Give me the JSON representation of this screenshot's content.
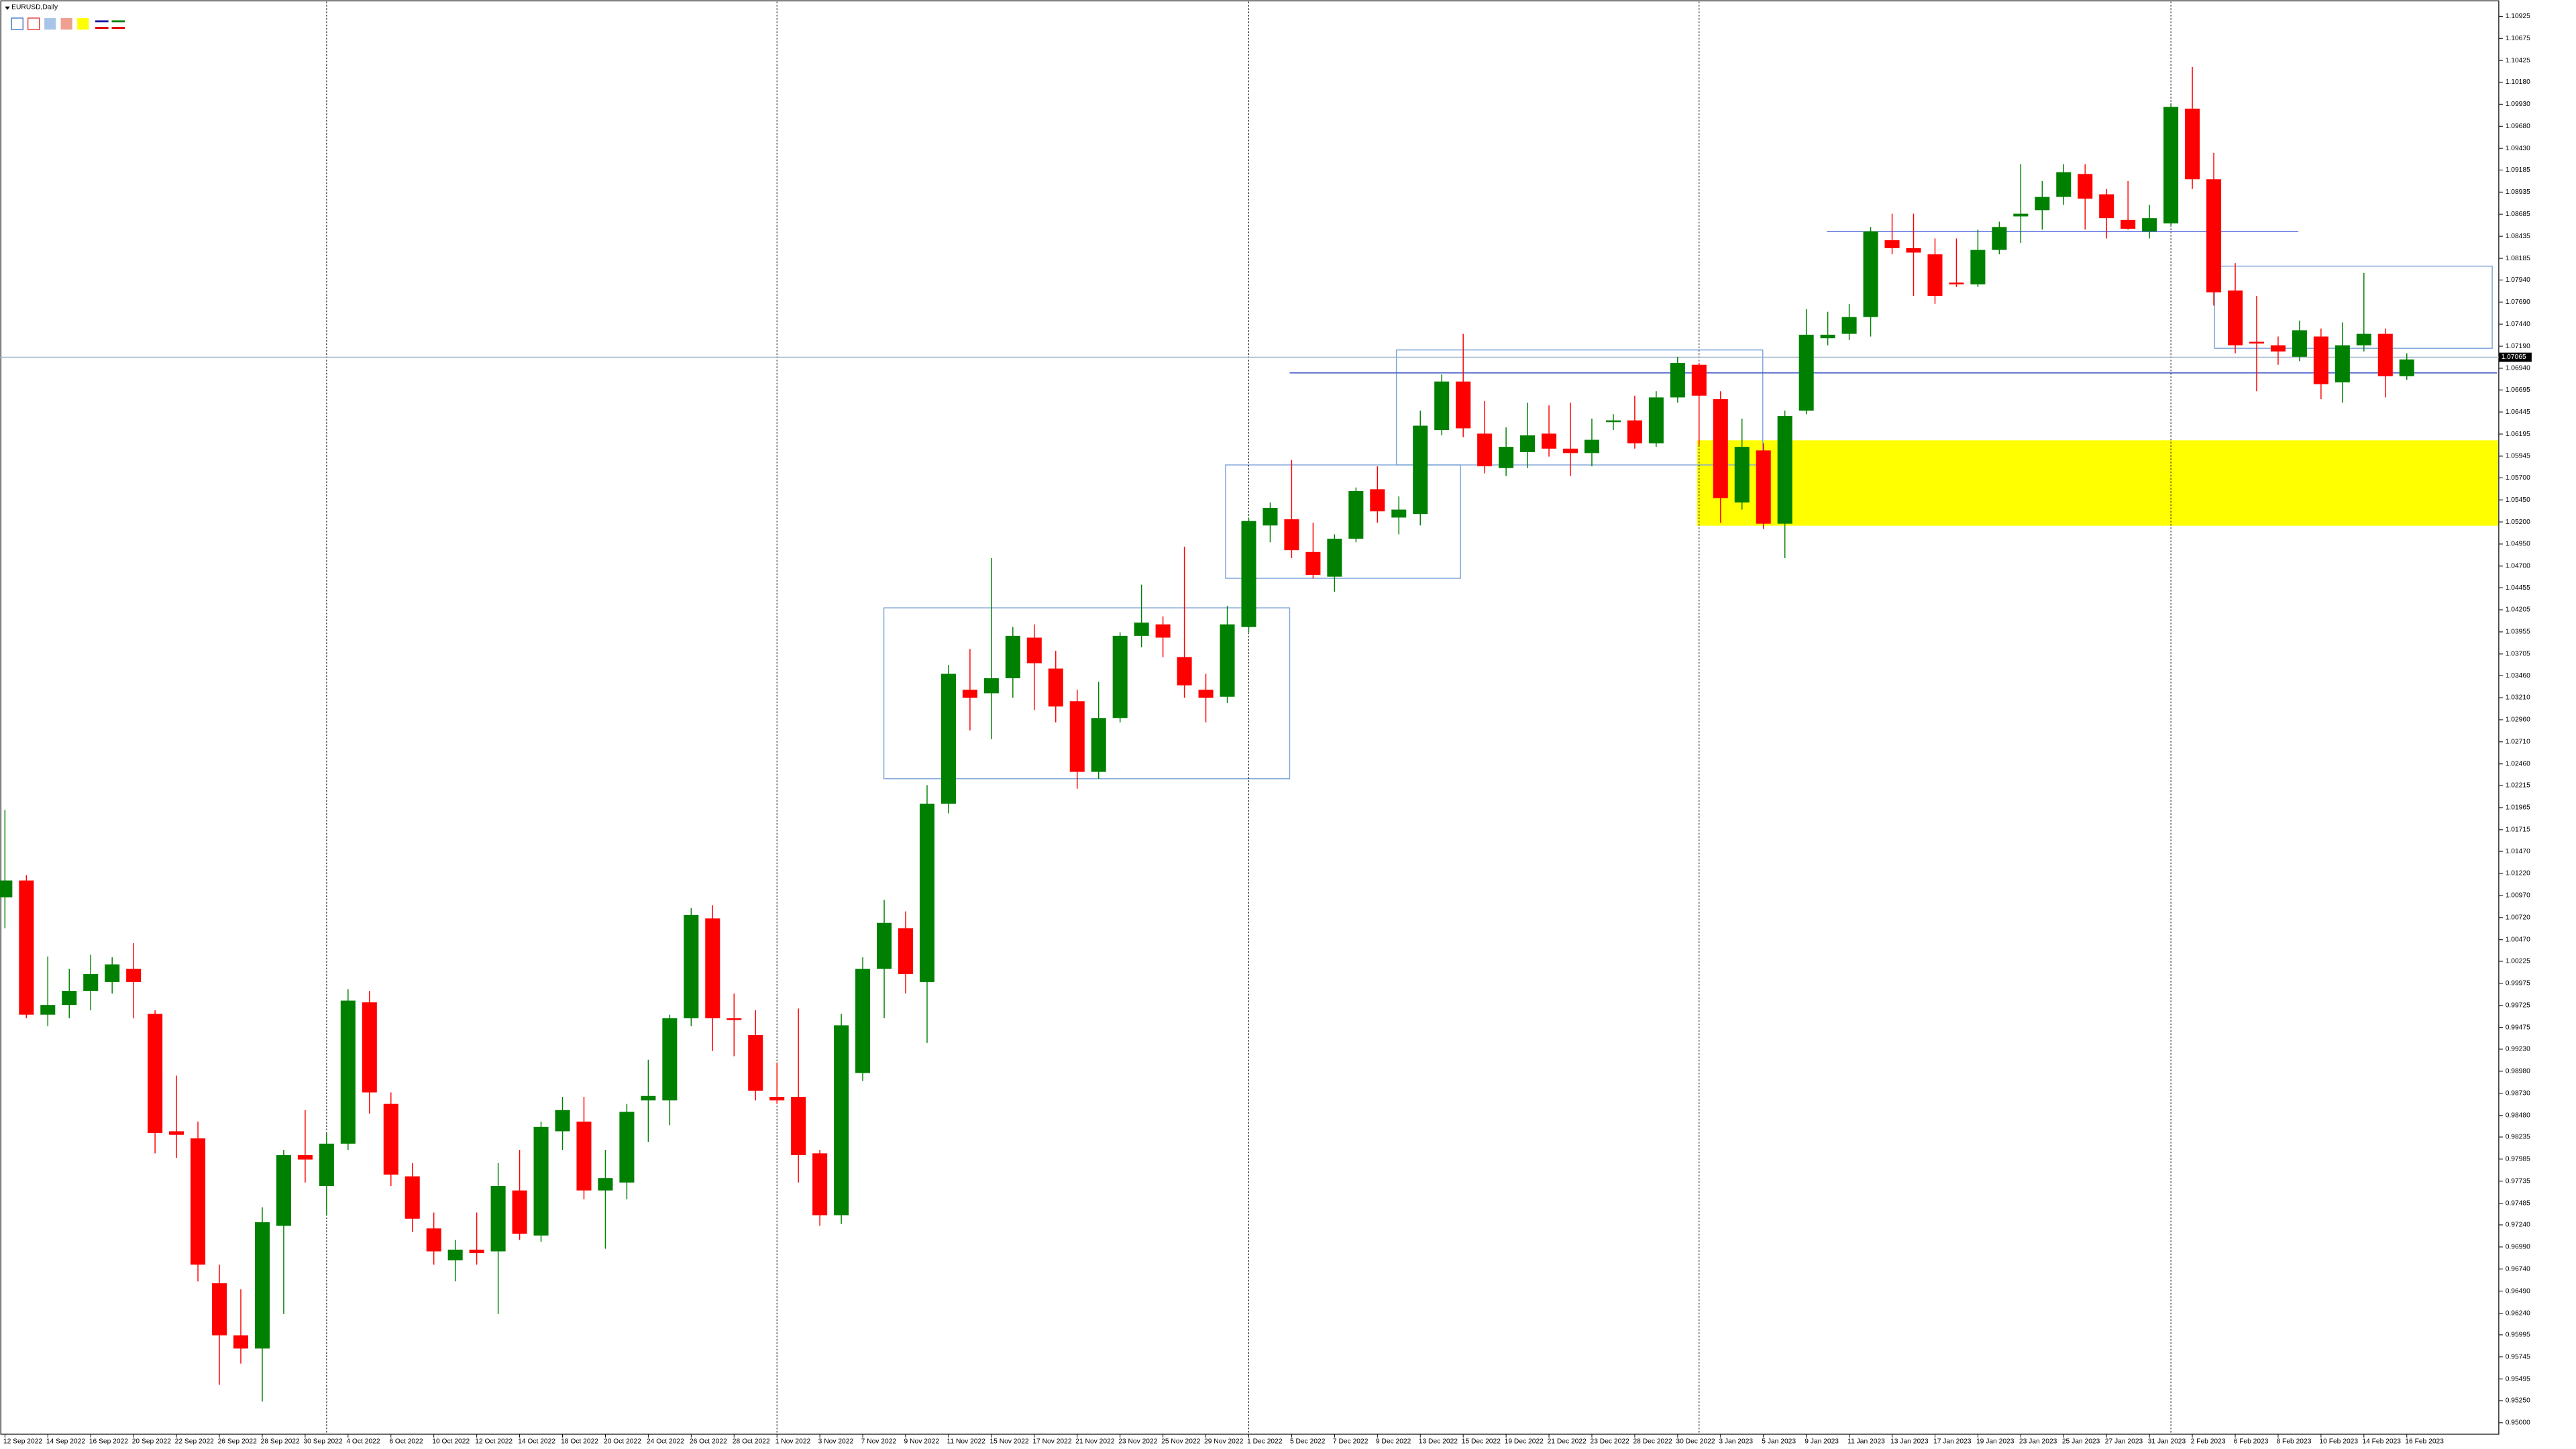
{
  "chart_data": {
    "type": "candlestick",
    "title": "EURUSD,Daily",
    "categories": [
      "12 Sep 2022",
      null,
      "14 Sep 2022",
      null,
      "16 Sep 2022",
      null,
      "20 Sep 2022",
      null,
      "22 Sep 2022",
      null,
      "26 Sep 2022",
      null,
      "28 Sep 2022",
      null,
      "30 Sep 2022",
      null,
      "4 Oct 2022",
      null,
      "6 Oct 2022",
      null,
      "10 Oct 2022",
      null,
      "12 Oct 2022",
      null,
      "14 Oct 2022",
      null,
      "18 Oct 2022",
      null,
      "20 Oct 2022",
      null,
      "24 Oct 2022",
      null,
      "26 Oct 2022",
      null,
      "28 Oct 2022",
      null,
      "1 Nov 2022",
      null,
      "3 Nov 2022",
      null,
      "7 Nov 2022",
      null,
      "9 Nov 2022",
      null,
      "11 Nov 2022",
      null,
      "15 Nov 2022",
      null,
      "17 Nov 2022",
      null,
      "21 Nov 2022",
      null,
      "23 Nov 2022",
      null,
      "25 Nov 2022",
      null,
      "29 Nov 2022",
      null,
      "1 Dec 2022",
      null,
      "5 Dec 2022",
      null,
      "7 Dec 2022",
      null,
      "9 Dec 2022",
      null,
      "13 Dec 2022",
      null,
      "15 Dec 2022",
      null,
      "19 Dec 2022",
      null,
      "21 Dec 2022",
      null,
      "23 Dec 2022",
      null,
      "28 Dec 2022",
      null,
      "30 Dec 2022",
      null,
      "3 Jan 2023",
      null,
      "5 Jan 2023",
      null,
      "9 Jan 2023",
      null,
      "11 Jan 2023",
      null,
      "13 Jan 2023",
      null,
      "17 Jan 2023",
      null,
      "19 Jan 2023",
      null,
      "23 Jan 2023",
      null,
      "25 Jan 2023",
      null,
      "27 Jan 2023",
      null,
      "31 Jan 2023",
      null,
      "2 Feb 2023",
      null,
      "6 Feb 2023",
      null,
      "8 Feb 2023",
      null,
      "10 Feb 2023",
      null,
      "14 Feb 2023",
      null,
      "16 Feb 2023"
    ],
    "open": [
      1.0095,
      1.0114,
      0.9962,
      0.9973,
      0.9989,
      0.9999,
      1.0014,
      0.9963,
      0.983,
      0.9822,
      0.9658,
      0.9599,
      0.9584,
      0.9723,
      0.9803,
      0.9768,
      0.9816,
      0.9976,
      0.9861,
      0.9779,
      0.972,
      0.9684,
      0.9696,
      0.9694,
      0.9763,
      0.9712,
      0.983,
      0.9841,
      0.9763,
      0.9772,
      0.9865,
      0.9865,
      0.9958,
      1.0071,
      0.9958,
      0.9939,
      0.9869,
      0.9869,
      0.9805,
      0.9735,
      0.9896,
      1.0014,
      1.006,
      0.9999,
      1.0201,
      1.033,
      1.0326,
      1.0343,
      1.0389,
      1.0354,
      1.0317,
      1.0237,
      1.0298,
      1.0391,
      1.0404,
      1.0367,
      1.033,
      1.0322,
      1.0401,
      1.0516,
      1.0523,
      1.0486,
      1.0458,
      1.0501,
      1.0557,
      1.0525,
      1.0529,
      1.0624,
      1.0679,
      1.062,
      1.0581,
      1.0599,
      1.062,
      1.0603,
      1.0598,
      1.0633,
      1.0635,
      1.0609,
      1.0661,
      1.0698,
      1.0659,
      1.0542,
      1.0601,
      1.0518,
      1.0646,
      1.0728,
      1.0733,
      1.0752,
      1.0839,
      1.083,
      1.0823,
      1.0791,
      1.0789,
      1.0828,
      1.0866,
      1.0873,
      1.0888,
      1.0914,
      1.0891,
      1.0862,
      1.0849,
      1.0858,
      1.0988,
      1.0908,
      1.0782,
      1.0724,
      1.072,
      1.0707,
      1.073,
      1.0678,
      1.072,
      1.0733,
      1.0685
    ],
    "high": [
      1.0194,
      1.012,
      1.0028,
      1.0014,
      1.003,
      1.0027,
      1.0043,
      0.9967,
      0.9893,
      0.9841,
      0.9679,
      0.9651,
      0.9744,
      0.9809,
      0.9854,
      0.9828,
      0.9991,
      0.9989,
      0.9874,
      0.9794,
      0.9738,
      0.9707,
      0.9738,
      0.9794,
      0.9809,
      0.9841,
      0.9869,
      0.9869,
      0.9809,
      0.9861,
      0.9911,
      0.9962,
      1.0083,
      1.0086,
      0.9986,
      0.9967,
      0.9908,
      0.9969,
      0.9809,
      0.9963,
      1.0027,
      1.0092,
      1.0079,
      1.0222,
      1.0358,
      1.0376,
      1.0479,
      1.0401,
      1.0404,
      1.0374,
      1.033,
      1.0339,
      1.0395,
      1.0449,
      1.0413,
      1.0492,
      1.0348,
      1.0425,
      1.0525,
      1.0542,
      1.059,
      1.0519,
      1.0506,
      1.0559,
      1.0583,
      1.0549,
      1.0646,
      1.0687,
      1.0733,
      1.0657,
      1.0627,
      1.0655,
      1.0652,
      1.0655,
      1.0637,
      1.0642,
      1.0663,
      1.0668,
      1.0707,
      1.07,
      1.0668,
      1.0637,
      1.0609,
      1.0646,
      1.0761,
      1.0758,
      1.0767,
      1.0854,
      1.0869,
      1.0869,
      1.0841,
      1.0841,
      1.0851,
      1.086,
      1.0925,
      1.0906,
      1.0925,
      1.0925,
      1.0897,
      1.0906,
      1.0879,
      1.0994,
      1.1035,
      1.0938,
      1.0813,
      1.0776,
      1.073,
      1.0748,
      1.0739,
      1.0746,
      1.0802,
      1.0739,
      1.0711
    ],
    "low": [
      1.006,
      0.9958,
      0.9949,
      0.9958,
      0.9967,
      0.9986,
      0.9958,
      0.9805,
      0.98,
      0.966,
      0.9543,
      0.9567,
      0.9524,
      0.9623,
      0.9772,
      0.9735,
      0.9809,
      0.985,
      0.9768,
      0.9716,
      0.9679,
      0.966,
      0.9679,
      0.9623,
      0.9707,
      0.9705,
      0.9809,
      0.9753,
      0.9697,
      0.9753,
      0.9818,
      0.9837,
      0.9949,
      0.9921,
      0.9915,
      0.9865,
      0.9861,
      0.9772,
      0.9723,
      0.9725,
      0.9887,
      0.9958,
      0.9986,
      0.993,
      1.019,
      1.0284,
      1.0274,
      1.0321,
      1.0307,
      1.0293,
      1.0218,
      1.0229,
      1.0293,
      1.0378,
      1.0367,
      1.0321,
      1.0293,
      1.0315,
      1.0395,
      1.0497,
      1.0479,
      1.0456,
      1.0441,
      1.0497,
      1.0519,
      1.0506,
      1.0516,
      1.0618,
      1.0616,
      1.0575,
      1.0572,
      1.0581,
      1.0594,
      1.0572,
      1.0583,
      1.0624,
      1.0603,
      1.0605,
      1.0655,
      1.0607,
      1.0519,
      1.0534,
      1.0512,
      1.0479,
      1.0642,
      1.072,
      1.0726,
      1.073,
      1.0823,
      1.0776,
      1.0767,
      1.0786,
      1.0786,
      1.0823,
      1.0836,
      1.0851,
      1.0879,
      1.0851,
      1.0841,
      1.0851,
      1.0841,
      1.0856,
      1.0897,
      1.0765,
      1.0711,
      1.0668,
      1.0698,
      1.0702,
      1.0659,
      1.0655,
      1.0713,
      1.0661,
      1.0681
    ],
    "close": [
      1.0114,
      0.9962,
      0.9973,
      0.9989,
      1.0008,
      1.0019,
      0.9999,
      0.9828,
      0.9826,
      0.9679,
      0.9599,
      0.9584,
      0.9727,
      0.9803,
      0.9798,
      0.9816,
      0.9978,
      0.9874,
      0.9781,
      0.9731,
      0.9694,
      0.9696,
      0.9692,
      0.9768,
      0.9714,
      0.9835,
      0.9854,
      0.9763,
      0.9777,
      0.9852,
      0.987,
      0.9958,
      1.0075,
      0.9958,
      0.9956,
      0.9876,
      0.9865,
      0.9803,
      0.9735,
      0.995,
      1.0014,
      1.0066,
      1.0008,
      1.0201,
      1.0348,
      1.0321,
      1.0343,
      1.0391,
      1.036,
      1.0311,
      1.0237,
      1.0298,
      1.0391,
      1.0406,
      1.0389,
      1.0335,
      1.0321,
      1.0404,
      1.0521,
      1.0536,
      1.0488,
      1.046,
      1.0501,
      1.0555,
      1.0532,
      1.0534,
      1.0629,
      1.0679,
      1.0626,
      1.0583,
      1.0605,
      1.0618,
      1.0603,
      1.0598,
      1.0613,
      1.0635,
      1.0609,
      1.0661,
      1.07,
      1.0663,
      1.0547,
      1.0605,
      1.0518,
      1.064,
      1.0732,
      1.0732,
      1.0752,
      1.0849,
      1.083,
      1.0825,
      1.0776,
      1.0789,
      1.0828,
      1.0854,
      1.0869,
      1.0888,
      1.0916,
      1.0886,
      1.0864,
      1.0852,
      1.0864,
      1.099,
      1.0908,
      1.078,
      1.072,
      1.0722,
      1.0713,
      1.0737,
      1.0676,
      1.072,
      1.0733,
      1.0685,
      1.0704
    ],
    "up_color": "#008000",
    "down_color": "#ff0000",
    "ylim": [
      0.9487,
      1.1111
    ],
    "yticks": [
      1.10925,
      1.10675,
      1.10425,
      {
        "value": 1.1018,
        "label": "1.10180"
      },
      {
        "value": 1.0993,
        "label": "1.09930"
      },
      {
        "value": 1.0968,
        "label": "1.09680"
      },
      {
        "value": 1.0943,
        "label": "1.09430"
      },
      1.09185,
      1.08935,
      1.08685,
      1.08435,
      1.08185,
      {
        "value": 1.0794,
        "label": "1.07940"
      },
      {
        "value": 1.0769,
        "label": "1.07690"
      },
      {
        "value": 1.0744,
        "label": "1.07440"
      },
      {
        "value": 1.0719,
        "label": "1.07190"
      },
      {
        "value": 1.0694,
        "label": "1.06940"
      },
      1.06695,
      1.06445,
      1.06195,
      1.05945,
      {
        "value": 1.057,
        "label": "1.05700"
      },
      {
        "value": 1.0545,
        "label": "1.05450"
      },
      {
        "value": 1.052,
        "label": "1.05200"
      },
      {
        "value": 1.0495,
        "label": "1.04950"
      },
      {
        "value": 1.047,
        "label": "1.04700"
      },
      1.04455,
      1.04205,
      1.03955,
      1.03705,
      {
        "value": 1.0346,
        "label": "1.03460"
      },
      {
        "value": 1.0321,
        "label": "1.03210"
      },
      {
        "value": 1.0296,
        "label": "1.02960"
      },
      {
        "value": 1.0271,
        "label": "1.02710"
      },
      {
        "value": 1.0246,
        "label": "1.02460"
      },
      1.02215,
      1.01965,
      1.01715,
      {
        "value": 1.0147,
        "label": "1.01470"
      },
      {
        "value": 1.0122,
        "label": "1.01220"
      },
      {
        "value": 1.0097,
        "label": "1.00970"
      },
      {
        "value": 1.0072,
        "label": "1.00720"
      },
      {
        "value": 1.0047,
        "label": "1.00470"
      },
      1.00225,
      0.99975,
      0.99725,
      0.99475,
      {
        "value": 0.9923,
        "label": "0.99230"
      },
      {
        "value": 0.9898,
        "label": "0.98980"
      },
      {
        "value": 0.9873,
        "label": "0.98730"
      },
      {
        "value": 0.9848,
        "label": "0.98480"
      },
      0.98235,
      0.97985,
      0.97735,
      0.97485,
      {
        "value": 0.9724,
        "label": "0.97240"
      },
      {
        "value": 0.9699,
        "label": "0.96990"
      },
      {
        "value": 0.9674,
        "label": "0.96740"
      },
      {
        "value": 0.9649,
        "label": "0.96490"
      },
      {
        "value": 0.9624,
        "label": "0.96240"
      },
      0.95995,
      0.95745,
      0.95495,
      {
        "value": 0.9525,
        "label": "0.95250"
      },
      {
        "value": 0.95,
        "label": "0.95000"
      }
    ],
    "last_price": 1.07065,
    "grid": false
  }
}
